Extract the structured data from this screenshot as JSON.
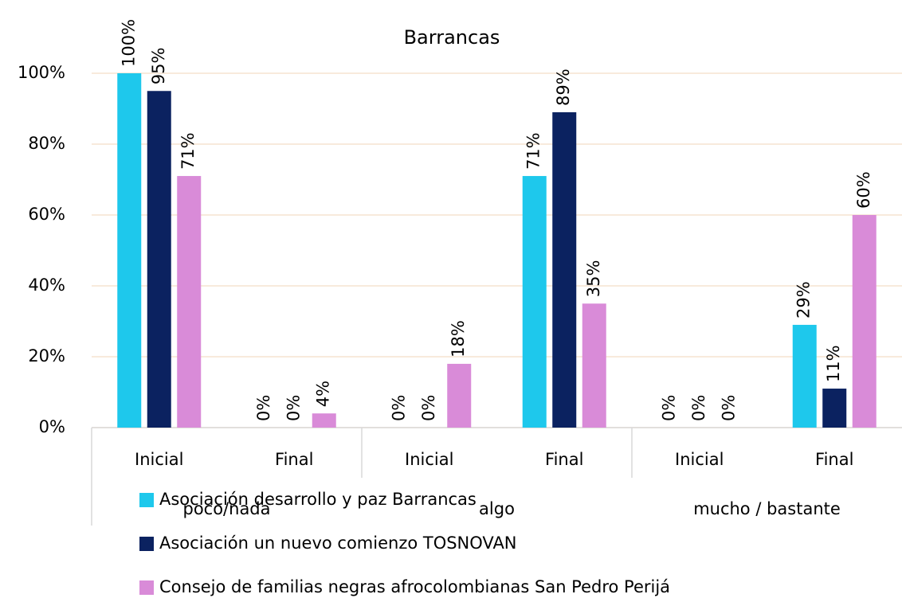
{
  "chart_data": {
    "type": "bar",
    "title": "Barrancas",
    "categories": [
      "Inicial",
      "Final",
      "Inicial",
      "Final",
      "Inicial",
      "Final"
    ],
    "category_groups": [
      "poco/nada",
      "algo",
      "mucho / bastante"
    ],
    "series": [
      {
        "name": "Asociación desarrollo y paz Barrancas",
        "color": "#1ec8ec",
        "values": [
          100,
          0,
          0,
          71,
          0,
          29
        ],
        "value_labels": [
          "100%",
          "0%",
          "0%",
          "71%",
          "0%",
          "29%"
        ]
      },
      {
        "name": "Asociación un nuevo comienzo TOSNOVAN",
        "color": "#0b2260",
        "values": [
          95,
          0,
          0,
          89,
          0,
          11
        ],
        "value_labels": [
          "95%",
          "0%",
          "0%",
          "89%",
          "0%",
          "11%"
        ]
      },
      {
        "name": "Consejo de familias negras afrocolombianas San Pedro Perijá",
        "color": "#d98bd8",
        "values": [
          71,
          4,
          18,
          35,
          0,
          60
        ],
        "value_labels": [
          "71%",
          "4%",
          "18%",
          "35%",
          "0%",
          "60%"
        ]
      }
    ],
    "ylim": [
      0,
      100
    ],
    "yticks": [
      {
        "value": 0,
        "label": "0%"
      },
      {
        "value": 20,
        "label": "20%"
      },
      {
        "value": 40,
        "label": "40%"
      },
      {
        "value": 60,
        "label": "60%"
      },
      {
        "value": 80,
        "label": "80%"
      },
      {
        "value": 100,
        "label": "100%"
      }
    ],
    "grid": true,
    "legend": "bottom"
  }
}
